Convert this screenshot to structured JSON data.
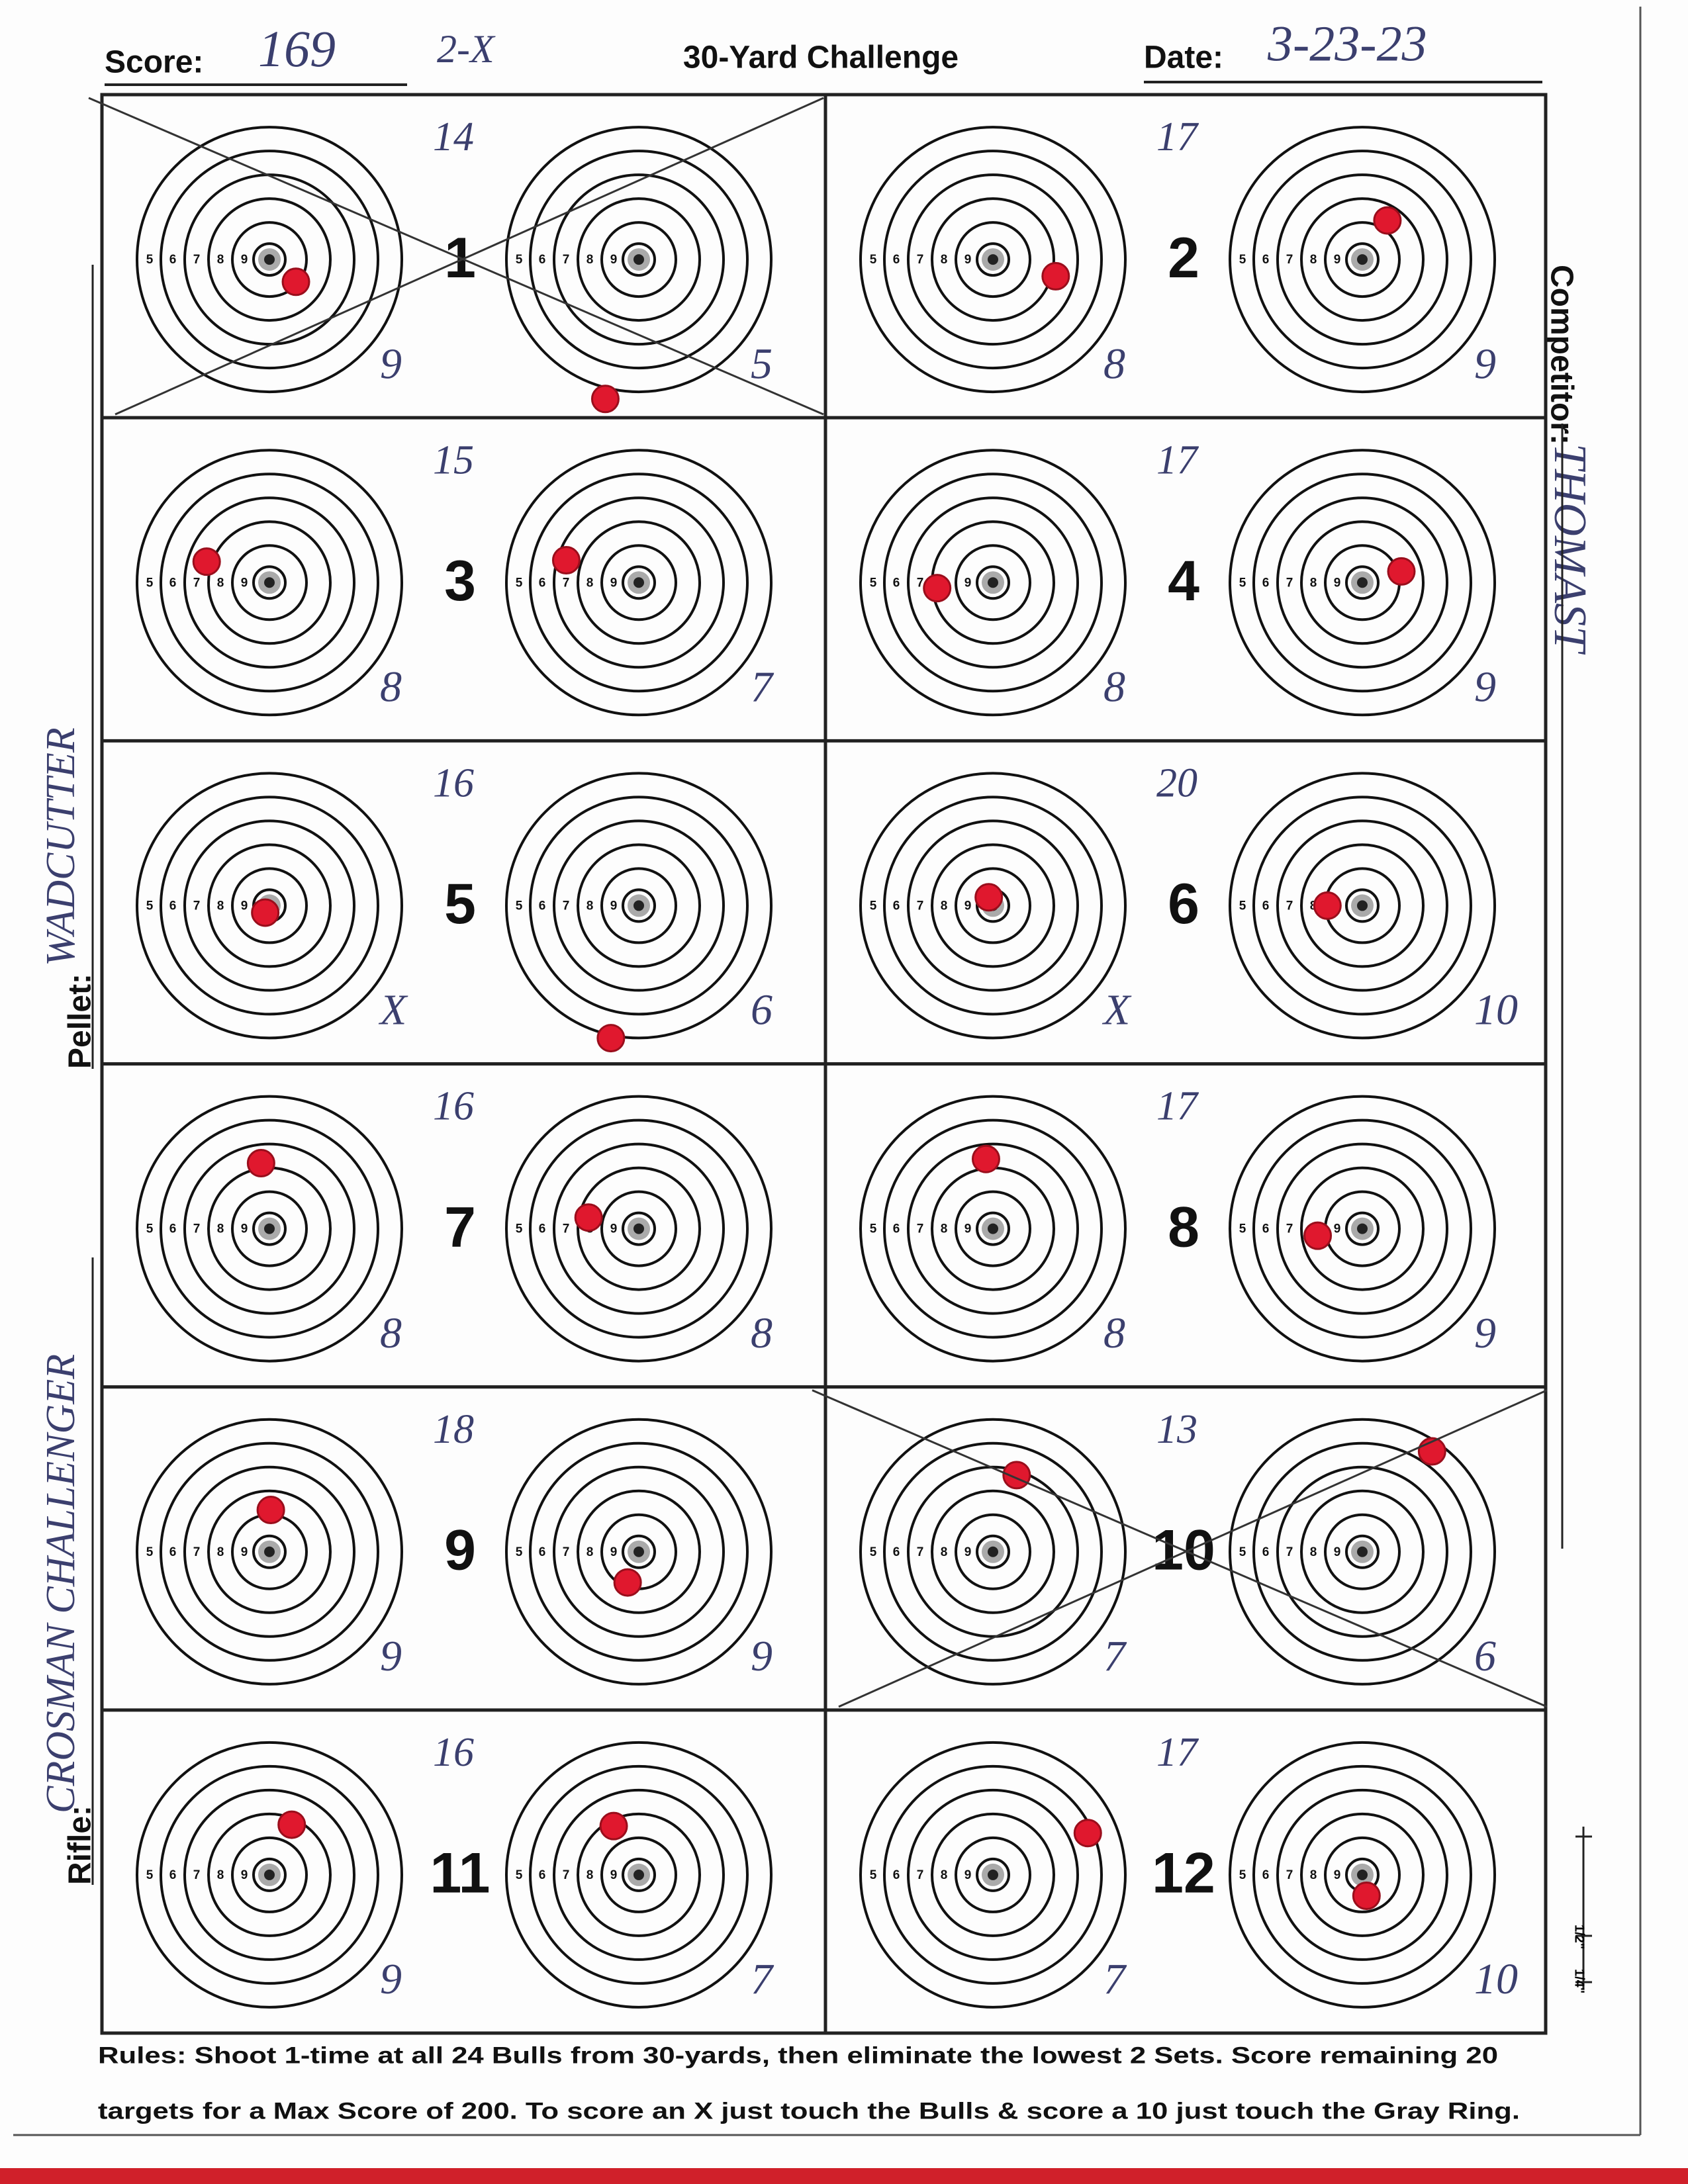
{
  "header": {
    "score_label": "Score:",
    "score": "169",
    "x_count": "2-X",
    "title": "30-Yard Challenge",
    "date_label": "Date:",
    "date": "3-23-23"
  },
  "competitor": {
    "label": "Competitor:",
    "value": "THOMAST"
  },
  "pellet": {
    "label": "Pellet:",
    "value": "WADCUTTER"
  },
  "rifle": {
    "label": "Rifle:",
    "value": "CROSMAN CHALLENGER"
  },
  "ring_labels": [
    "5",
    "6",
    "7",
    "8",
    "9"
  ],
  "sets": [
    {
      "number": "1",
      "total": "14",
      "left": "9",
      "right": "5"
    },
    {
      "number": "2",
      "total": "17",
      "left": "8",
      "right": "9"
    },
    {
      "number": "3",
      "total": "15",
      "left": "8",
      "right": "7"
    },
    {
      "number": "4",
      "total": "17",
      "left": "8",
      "right": "9"
    },
    {
      "number": "5",
      "total": "16",
      "left": "X",
      "right": "6"
    },
    {
      "number": "6",
      "total": "20",
      "left": "X",
      "right": "10"
    },
    {
      "number": "7",
      "total": "16",
      "left": "8",
      "right": "8"
    },
    {
      "number": "8",
      "total": "17",
      "left": "8",
      "right": "9"
    },
    {
      "number": "9",
      "total": "18",
      "left": "9",
      "right": "9"
    },
    {
      "number": "10",
      "total": "13",
      "left": "7",
      "right": "6"
    },
    {
      "number": "11",
      "total": "16",
      "left": "9",
      "right": "7"
    },
    {
      "number": "12",
      "total": "17",
      "left": "7",
      "right": "10"
    }
  ],
  "scale_labels": [
    "1/2\"",
    "1/4\""
  ],
  "rules": [
    "Rules: Shoot 1-time at all 24 Bulls from 30-yards, then eliminate the lowest 2 Sets. Score remaining 20",
    "targets for a Max Score of 200. To score an X just touch the Bulls & score a 10 just touch the Gray Ring."
  ]
}
